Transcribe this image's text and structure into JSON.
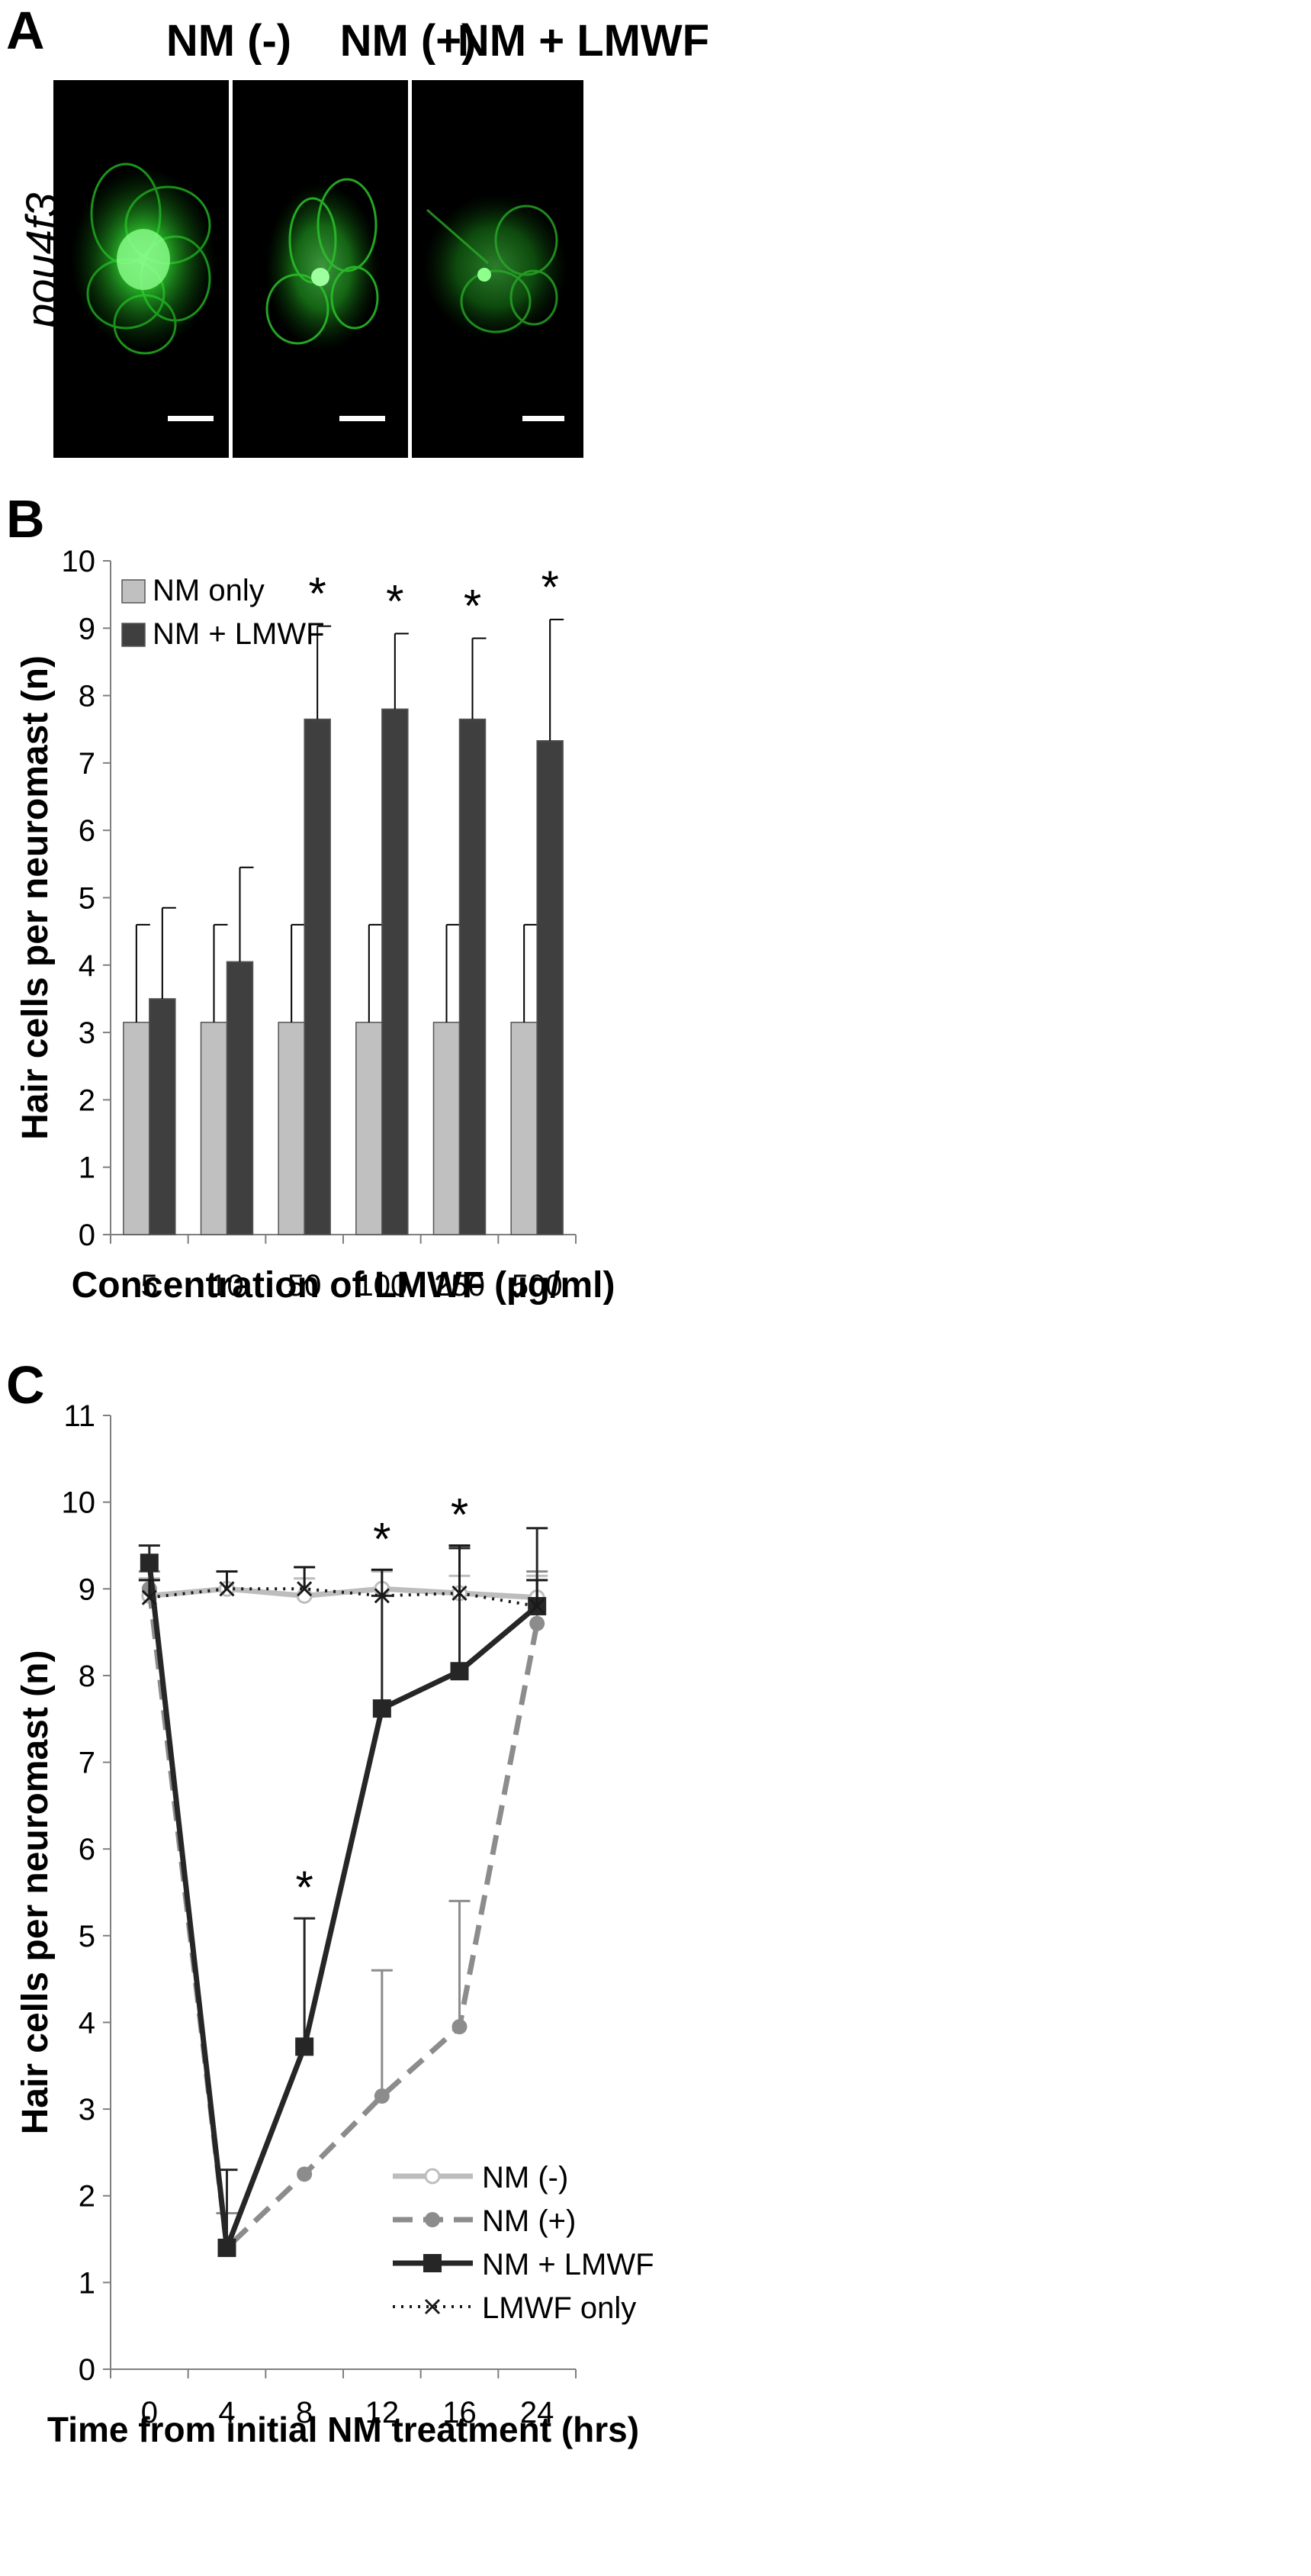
{
  "panels": {
    "a": {
      "letter": "A",
      "gene_label": "pou4f3",
      "images": [
        {
          "title": "NM (-)"
        },
        {
          "title": "NM (+)"
        },
        {
          "title": "NM + LMWF"
        }
      ]
    },
    "b": {
      "letter": "B"
    },
    "c": {
      "letter": "C"
    }
  },
  "colors": {
    "nm_only": "#c0c0c0",
    "nm_lmwf": "#3f3f3f",
    "line_nm_minus": "#bdbdbd",
    "line_nm_plus": "#8c8c8c",
    "line_nm_lmwf": "#262626",
    "line_lmwf_only": "#1a1a1a",
    "fluorescence": "#2ecc2e"
  },
  "chart_data": [
    {
      "panel": "B",
      "type": "bar",
      "xlabel": "Concentration of LMWF (µg/ml)",
      "ylabel": "Hair cells per neuromast (n)",
      "ylim": [
        0,
        10
      ],
      "yticks": [
        "0",
        "1",
        "2",
        "3",
        "4",
        "5",
        "6",
        "7",
        "8",
        "9",
        "10"
      ],
      "categories": [
        "5",
        "10",
        "50",
        "100",
        "250",
        "500"
      ],
      "legend_position": "top-left",
      "series": [
        {
          "name": "NM only",
          "values": [
            3.15,
            3.15,
            3.15,
            3.15,
            3.15,
            3.15
          ],
          "errors": [
            1.45,
            1.45,
            1.45,
            1.45,
            1.45,
            1.45
          ]
        },
        {
          "name": "NM + LMWF",
          "values": [
            3.5,
            4.05,
            7.65,
            7.8,
            7.65,
            7.33
          ],
          "errors": [
            1.35,
            1.4,
            1.38,
            1.12,
            1.2,
            1.8
          ]
        }
      ],
      "significance": [
        "",
        "",
        "*",
        "*",
        "*",
        "*"
      ]
    },
    {
      "panel": "C",
      "type": "line",
      "xlabel": "Time from initial NM treatment (hrs)",
      "ylabel": "Hair cells per neuromast (n)",
      "ylim": [
        0,
        11
      ],
      "yticks": [
        "0",
        "1",
        "2",
        "3",
        "4",
        "5",
        "6",
        "7",
        "8",
        "9",
        "10",
        "11"
      ],
      "categories": [
        "0",
        "4",
        "8",
        "12",
        "16",
        "24"
      ],
      "legend_position": "bottom-right",
      "series": [
        {
          "name": "NM (-)",
          "values": [
            8.92,
            9.0,
            8.92,
            9.0,
            8.95,
            8.9
          ],
          "errors": [
            0.2,
            0.2,
            0.2,
            0.2,
            0.2,
            0.25
          ]
        },
        {
          "name": "NM (+)",
          "values": [
            9.0,
            1.4,
            2.25,
            3.15,
            3.95,
            8.6
          ],
          "errors": [
            0.2,
            0.4,
            0,
            1.45,
            1.45,
            0.6
          ]
        },
        {
          "name": "NM + LMWF",
          "values": [
            9.3,
            1.4,
            3.72,
            7.62,
            8.05,
            8.8
          ],
          "errors": [
            0.2,
            0.9,
            1.48,
            1.3,
            1.42,
            0.9
          ]
        },
        {
          "name": "LMWF only",
          "values": [
            8.9,
            9.0,
            9.0,
            8.92,
            8.95,
            8.8
          ],
          "errors": [
            0.2,
            0.2,
            0.25,
            0.3,
            0.55,
            0.3
          ]
        }
      ],
      "significance": [
        "",
        "",
        "*",
        "*",
        "*",
        ""
      ]
    }
  ]
}
